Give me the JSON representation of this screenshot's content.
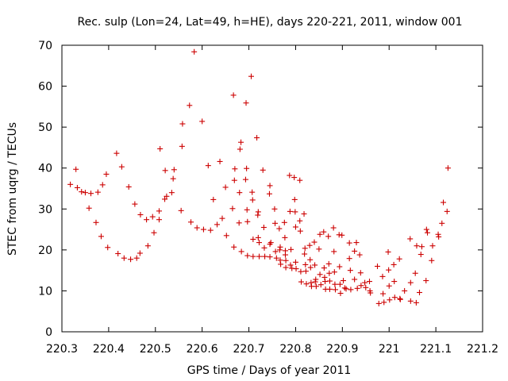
{
  "chart_data": {
    "type": "scatter",
    "title": "Rec. sulp (Lon=24, Lat=49, h=HE), days 220-221, 2011, window 001",
    "xlabel": "GPS time / Days of year 2011",
    "ylabel": "STEC from uqrg / TECUs",
    "xlim": [
      220.3,
      221.2
    ],
    "ylim": [
      0,
      70
    ],
    "x_ticks": [
      220.3,
      220.4,
      220.5,
      220.6,
      220.7,
      220.8,
      220.9,
      221,
      221.1,
      221.2
    ],
    "x_tick_labels": [
      "220.3",
      "220.4",
      "220.5",
      "220.6",
      "220.7",
      "220.8",
      "220.9",
      "221",
      "221.1",
      "221.2"
    ],
    "y_ticks": [
      0,
      10,
      20,
      30,
      40,
      50,
      60,
      70
    ],
    "y_tick_labels": [
      "0",
      "10",
      "20",
      "30",
      "40",
      "50",
      "60",
      "70"
    ],
    "grid": false,
    "marker": "+",
    "marker_color": "#cc0000",
    "points": [
      [
        220.318,
        36.0
      ],
      [
        220.33,
        39.7
      ],
      [
        220.333,
        35.2
      ],
      [
        220.342,
        34.2
      ],
      [
        220.35,
        34.0
      ],
      [
        220.358,
        30.2
      ],
      [
        220.362,
        33.8
      ],
      [
        220.373,
        26.7
      ],
      [
        220.377,
        34.1
      ],
      [
        220.384,
        23.3
      ],
      [
        220.387,
        35.9
      ],
      [
        220.395,
        38.5
      ],
      [
        220.398,
        20.6
      ],
      [
        220.417,
        43.6
      ],
      [
        220.42,
        19.1
      ],
      [
        220.428,
        40.3
      ],
      [
        220.433,
        18.0
      ],
      [
        220.443,
        35.4
      ],
      [
        220.447,
        17.7
      ],
      [
        220.456,
        31.2
      ],
      [
        220.46,
        18.0
      ],
      [
        220.467,
        19.2
      ],
      [
        220.468,
        28.6
      ],
      [
        220.481,
        27.4
      ],
      [
        220.484,
        21.0
      ],
      [
        220.494,
        28.1
      ],
      [
        220.497,
        24.2
      ],
      [
        220.508,
        27.4
      ],
      [
        220.508,
        29.5
      ],
      [
        220.51,
        44.7
      ],
      [
        220.52,
        32.4
      ],
      [
        220.521,
        39.4
      ],
      [
        220.524,
        33.1
      ],
      [
        220.535,
        34.0
      ],
      [
        220.538,
        37.4
      ],
      [
        220.54,
        39.6
      ],
      [
        220.555,
        29.6
      ],
      [
        220.557,
        45.3
      ],
      [
        220.558,
        50.8
      ],
      [
        220.573,
        55.3
      ],
      [
        220.576,
        26.8
      ],
      [
        220.583,
        68.4
      ],
      [
        220.589,
        25.4
      ],
      [
        220.6,
        51.4
      ],
      [
        220.603,
        25.0
      ],
      [
        220.613,
        40.6
      ],
      [
        220.618,
        24.8
      ],
      [
        220.624,
        32.3
      ],
      [
        220.632,
        26.2
      ],
      [
        220.638,
        41.6
      ],
      [
        220.643,
        27.7
      ],
      [
        220.65,
        35.3
      ],
      [
        220.652,
        23.5
      ],
      [
        220.665,
        30.1
      ],
      [
        220.668,
        20.7
      ],
      [
        220.667,
        57.8
      ],
      [
        220.669,
        37.0
      ],
      [
        220.67,
        39.8
      ],
      [
        220.679,
        26.6
      ],
      [
        220.68,
        34.0
      ],
      [
        220.681,
        44.6
      ],
      [
        220.683,
        46.3
      ],
      [
        220.684,
        19.6
      ],
      [
        220.693,
        37.2
      ],
      [
        220.694,
        55.9
      ],
      [
        220.695,
        39.9
      ],
      [
        220.696,
        29.8
      ],
      [
        220.697,
        26.9
      ],
      [
        220.697,
        18.6
      ],
      [
        220.705,
        62.4
      ],
      [
        220.707,
        34.1
      ],
      [
        220.708,
        32.2
      ],
      [
        220.709,
        22.6
      ],
      [
        220.709,
        18.4
      ],
      [
        220.717,
        47.4
      ],
      [
        220.719,
        28.5
      ],
      [
        220.72,
        29.3
      ],
      [
        220.72,
        23.0
      ],
      [
        220.722,
        21.8
      ],
      [
        220.722,
        18.4
      ],
      [
        220.73,
        39.5
      ],
      [
        220.732,
        25.5
      ],
      [
        220.733,
        20.5
      ],
      [
        220.734,
        18.4
      ],
      [
        220.744,
        33.7
      ],
      [
        220.745,
        35.7
      ],
      [
        220.745,
        21.4
      ],
      [
        220.745,
        18.3
      ],
      [
        220.747,
        21.8
      ],
      [
        220.755,
        30.0
      ],
      [
        220.756,
        26.5
      ],
      [
        220.757,
        19.6
      ],
      [
        220.759,
        18.0
      ],
      [
        220.765,
        25.2
      ],
      [
        220.766,
        20.0
      ],
      [
        220.767,
        20.7
      ],
      [
        220.767,
        17.5
      ],
      [
        220.768,
        16.5
      ],
      [
        220.776,
        26.7
      ],
      [
        220.777,
        23.0
      ],
      [
        220.778,
        18.8
      ],
      [
        220.778,
        19.8
      ],
      [
        220.779,
        17.4
      ],
      [
        220.779,
        15.7
      ],
      [
        220.787,
        38.2
      ],
      [
        220.788,
        29.4
      ],
      [
        220.789,
        16.3
      ],
      [
        220.79,
        20.1
      ],
      [
        220.792,
        15.5
      ],
      [
        220.797,
        37.7
      ],
      [
        220.798,
        32.3
      ],
      [
        220.799,
        29.3
      ],
      [
        220.8,
        25.6
      ],
      [
        220.8,
        17.0
      ],
      [
        220.801,
        15.4
      ],
      [
        220.809,
        37.0
      ],
      [
        220.809,
        27.1
      ],
      [
        220.81,
        24.6
      ],
      [
        220.811,
        14.7
      ],
      [
        220.812,
        12.2
      ],
      [
        220.818,
        28.8
      ],
      [
        220.819,
        19.0
      ],
      [
        220.82,
        20.4
      ],
      [
        220.821,
        16.4
      ],
      [
        220.822,
        14.8
      ],
      [
        220.823,
        11.7
      ],
      [
        220.83,
        21.1
      ],
      [
        220.831,
        17.6
      ],
      [
        220.832,
        15.7
      ],
      [
        220.833,
        12.0
      ],
      [
        220.834,
        11.1
      ],
      [
        220.84,
        21.9
      ],
      [
        220.841,
        16.3
      ],
      [
        220.842,
        12.2
      ],
      [
        220.843,
        12.8
      ],
      [
        220.844,
        11.1
      ],
      [
        220.85,
        20.2
      ],
      [
        220.852,
        23.8
      ],
      [
        220.852,
        14.0
      ],
      [
        220.854,
        11.5
      ],
      [
        220.86,
        24.4
      ],
      [
        220.861,
        15.6
      ],
      [
        220.862,
        13.3
      ],
      [
        220.863,
        12.3
      ],
      [
        220.864,
        10.4
      ],
      [
        220.87,
        23.3
      ],
      [
        220.871,
        16.6
      ],
      [
        220.872,
        14.3
      ],
      [
        220.873,
        12.4
      ],
      [
        220.873,
        10.4
      ],
      [
        220.881,
        25.4
      ],
      [
        220.882,
        19.6
      ],
      [
        220.883,
        14.6
      ],
      [
        220.884,
        11.6
      ],
      [
        220.885,
        10.3
      ],
      [
        220.893,
        23.7
      ],
      [
        220.894,
        15.9
      ],
      [
        220.895,
        11.6
      ],
      [
        220.896,
        9.4
      ],
      [
        220.899,
        23.6
      ],
      [
        220.902,
        12.5
      ],
      [
        220.905,
        10.7
      ],
      [
        220.908,
        10.5
      ],
      [
        220.915,
        21.7
      ],
      [
        220.915,
        17.9
      ],
      [
        220.917,
        15.0
      ],
      [
        220.918,
        10.3
      ],
      [
        220.926,
        19.7
      ],
      [
        220.926,
        12.8
      ],
      [
        220.93,
        21.8
      ],
      [
        220.932,
        10.6
      ],
      [
        220.937,
        18.8
      ],
      [
        220.939,
        14.4
      ],
      [
        220.94,
        11.3
      ],
      [
        220.948,
        12.0
      ],
      [
        220.95,
        10.8
      ],
      [
        220.958,
        12.3
      ],
      [
        220.959,
        10.0
      ],
      [
        220.96,
        9.5
      ],
      [
        220.975,
        16.0
      ],
      [
        220.978,
        6.9
      ],
      [
        220.986,
        13.5
      ],
      [
        220.987,
        9.3
      ],
      [
        220.989,
        7.2
      ],
      [
        220.998,
        19.5
      ],
      [
        220.999,
        15.1
      ],
      [
        221.0,
        11.2
      ],
      [
        221.001,
        7.8
      ],
      [
        221.01,
        16.4
      ],
      [
        221.011,
        12.3
      ],
      [
        221.012,
        8.4
      ],
      [
        221.022,
        17.8
      ],
      [
        221.023,
        8.1
      ],
      [
        221.024,
        7.9
      ],
      [
        221.033,
        10.0
      ],
      [
        221.045,
        22.7
      ],
      [
        221.046,
        12.0
      ],
      [
        221.046,
        7.5
      ],
      [
        221.056,
        14.3
      ],
      [
        221.058,
        7.1
      ],
      [
        221.059,
        21.0
      ],
      [
        221.065,
        9.6
      ],
      [
        221.068,
        18.9
      ],
      [
        221.07,
        20.8
      ],
      [
        221.079,
        12.5
      ],
      [
        221.08,
        25.0
      ],
      [
        221.082,
        24.2
      ],
      [
        221.091,
        17.4
      ],
      [
        221.093,
        21.0
      ],
      [
        221.105,
        23.8
      ],
      [
        221.106,
        23.2
      ],
      [
        221.113,
        26.5
      ],
      [
        221.116,
        31.6
      ],
      [
        221.124,
        29.4
      ],
      [
        221.126,
        40.0
      ]
    ]
  }
}
